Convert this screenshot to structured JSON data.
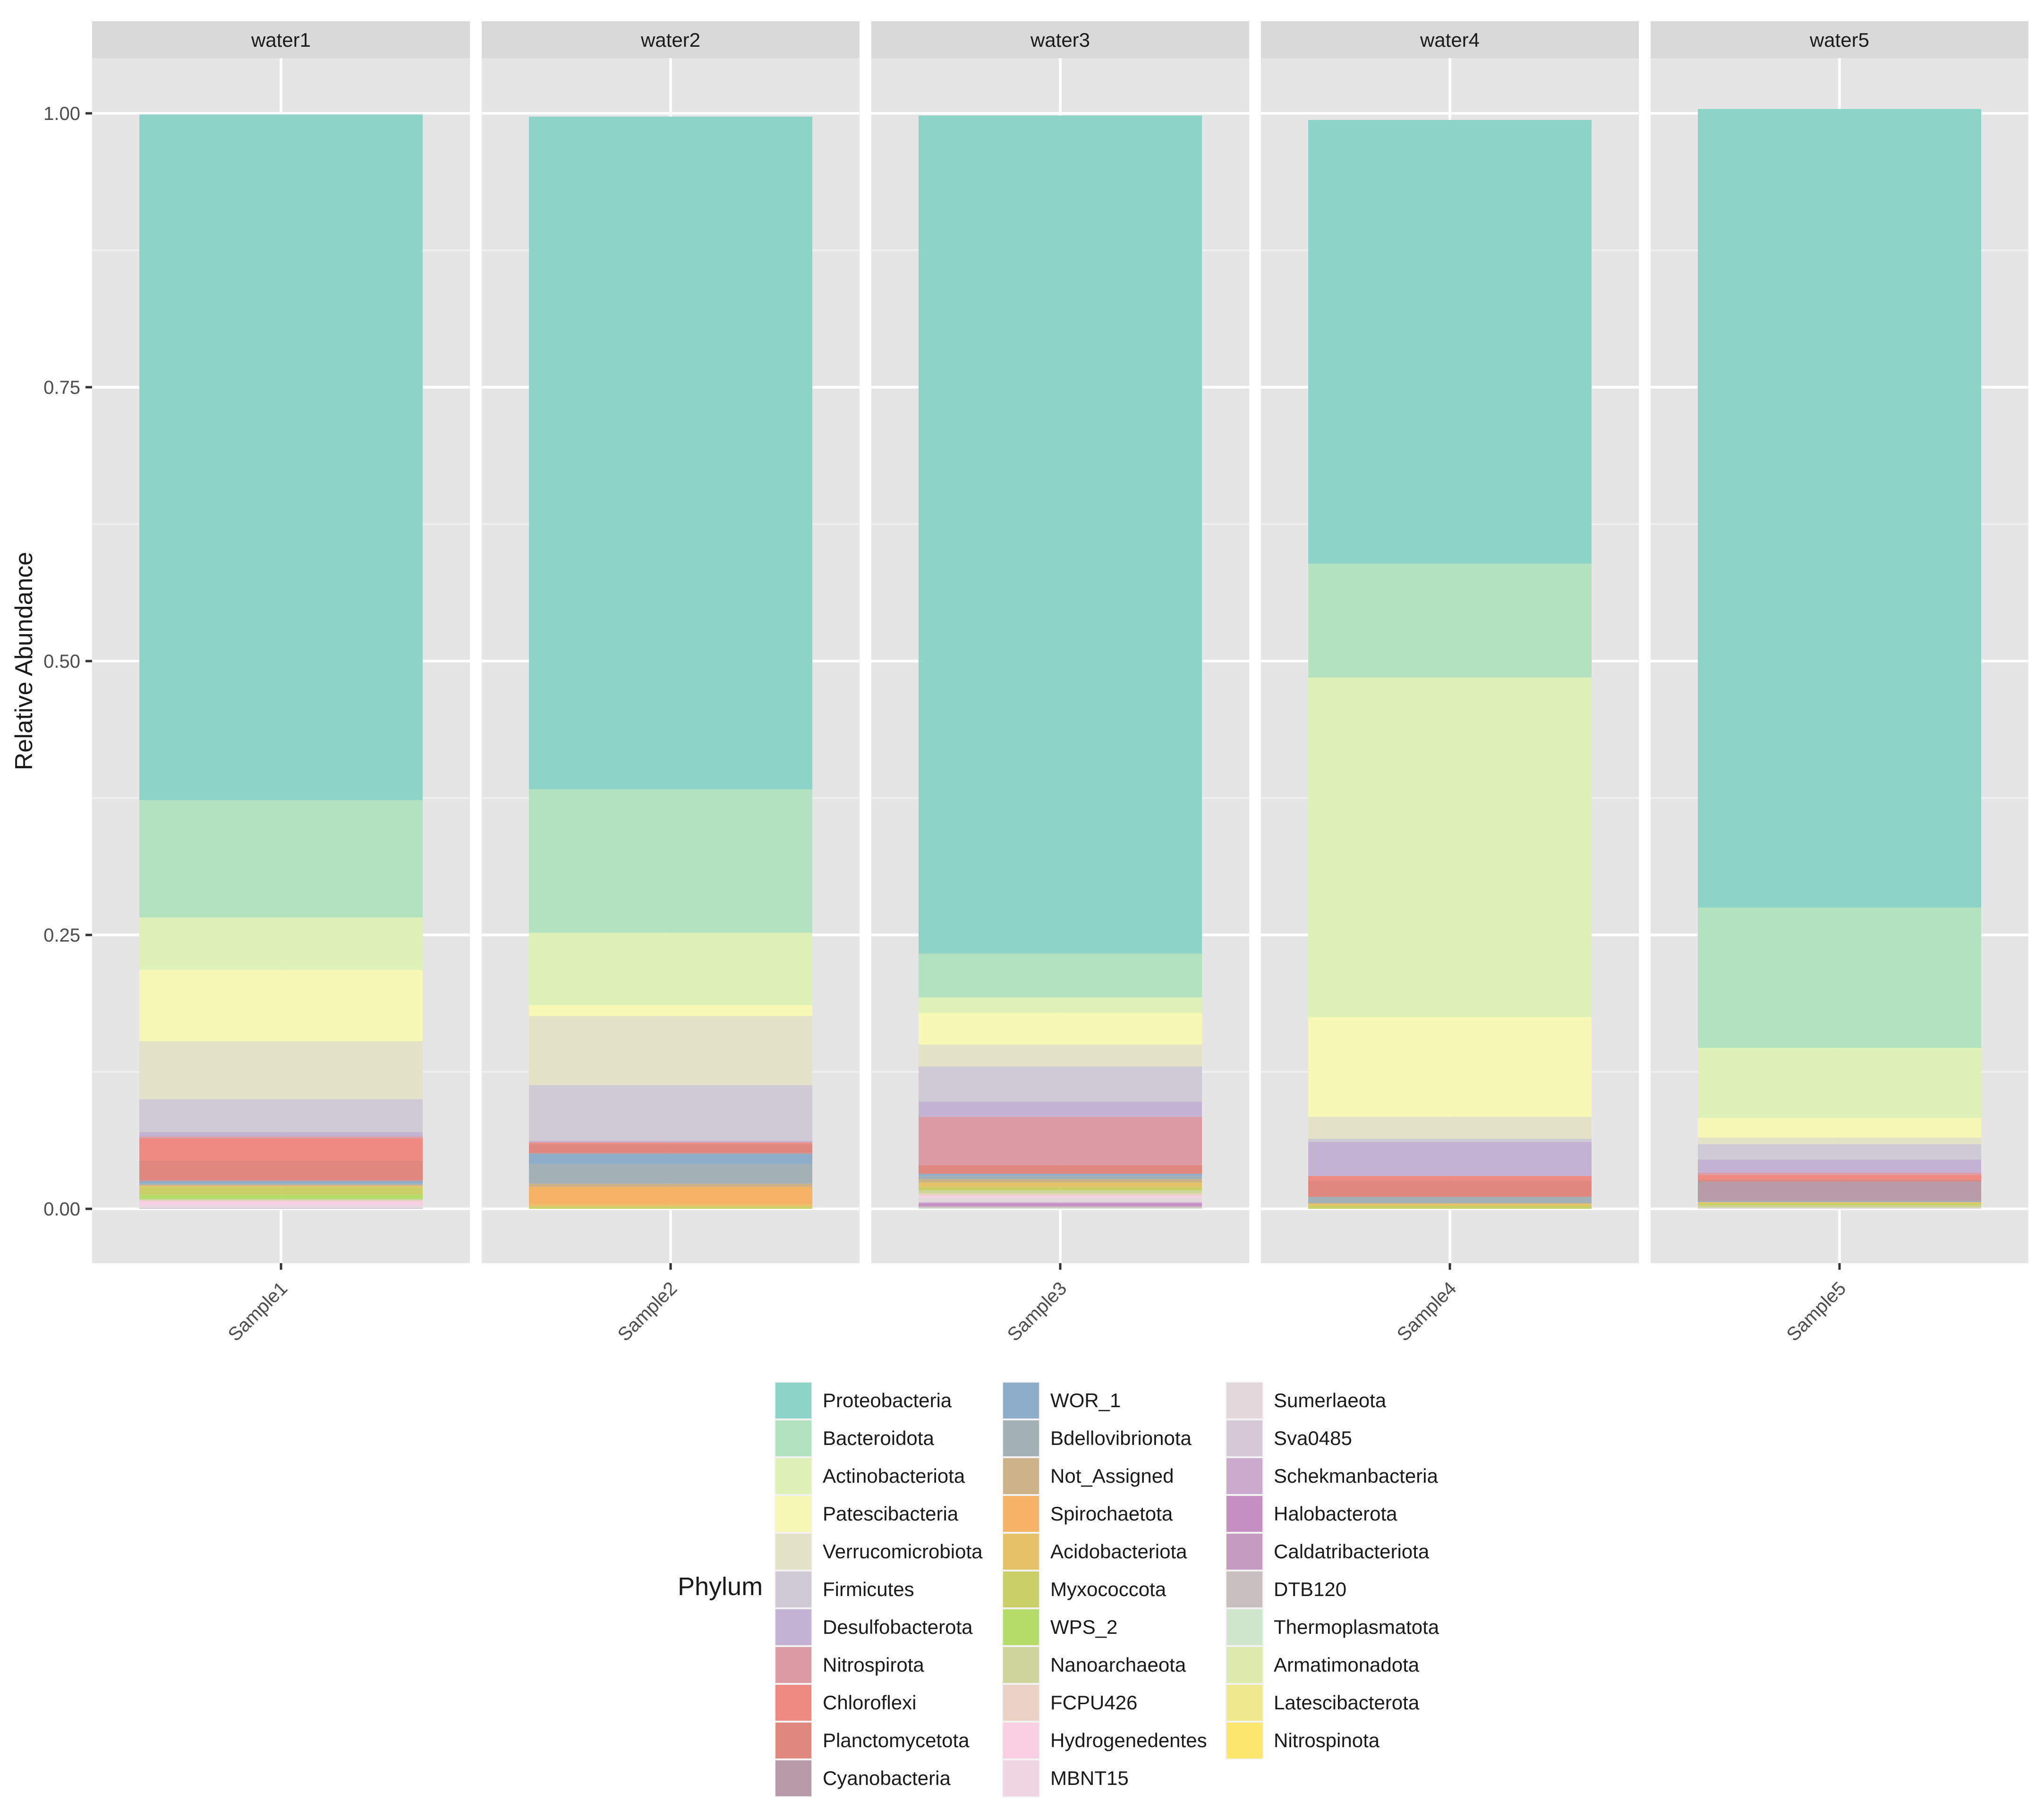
{
  "chart_data": {
    "type": "bar",
    "stacked": true,
    "facet_label": "",
    "ylabel": "Relative Abundance",
    "xlabel": "",
    "ylim": [
      0,
      1
    ],
    "yticks": [
      0,
      0.25,
      0.5,
      0.75,
      1
    ],
    "ytick_labels": [
      "0.00",
      "0.25",
      "0.50",
      "0.75",
      "1.00"
    ],
    "grid": true,
    "legend_position": "bottom",
    "legend_title": "Phylum",
    "facets": [
      "water1",
      "water2",
      "water3",
      "water4",
      "water5"
    ],
    "samples": [
      "Sample1",
      "Sample2",
      "Sample3",
      "Sample4",
      "Sample5"
    ],
    "series": [
      {
        "name": "Proteobacteria",
        "color": "#8DD3C7",
        "values": [
          0.626,
          0.614,
          0.765,
          0.405,
          0.729
        ]
      },
      {
        "name": "Bacteroidota",
        "color": "#B3E2C0",
        "values": [
          0.107,
          0.131,
          0.04,
          0.104,
          0.128
        ]
      },
      {
        "name": "Actinobacteriota",
        "color": "#DEF2B8",
        "values": [
          0.048,
          0.066,
          0.014,
          0.31,
          0.064
        ]
      },
      {
        "name": "Patescibacteria",
        "color": "#F8F8B6",
        "values": [
          0.065,
          0.01,
          0.029,
          0.091,
          0.018
        ]
      },
      {
        "name": "Verrucomicrobiota",
        "color": "#E3E2C6",
        "values": [
          0.053,
          0.063,
          0.02,
          0.02,
          0.006
        ]
      },
      {
        "name": "Firmicutes",
        "color": "#CECBD4",
        "values": [
          0.03,
          0.051,
          0.032,
          0.003,
          0.014
        ]
      },
      {
        "name": "Desulfobacterota",
        "color": "#C4B2D2",
        "values": [
          0.004,
          0.001,
          0.014,
          0.031,
          0.012
        ]
      },
      {
        "name": "Nitrospirota",
        "color": "#DA9BA5",
        "values": [
          0.002,
          0.001,
          0.044,
          0.0,
          0.002
        ]
      },
      {
        "name": "Chloroflexi",
        "color": "#EE8A82",
        "values": [
          0.02,
          0.001,
          0.0,
          0.004,
          0.004
        ]
      },
      {
        "name": "Planctomycetota",
        "color": "#E0877F",
        "values": [
          0.018,
          0.008,
          0.008,
          0.015,
          0.002
        ]
      },
      {
        "name": "Cyanobacteria",
        "color": "#B79CA8",
        "values": [
          0.001,
          0.001,
          0.0,
          0.0,
          0.018
        ]
      },
      {
        "name": "WOR_1",
        "color": "#8EADC9",
        "values": [
          0.002,
          0.009,
          0.002,
          0.0,
          0.0
        ]
      },
      {
        "name": "Bdellovibrionota",
        "color": "#A2B1B5",
        "values": [
          0.001,
          0.018,
          0.003,
          0.006,
          0.001
        ]
      },
      {
        "name": "Not_Assigned",
        "color": "#CCB286",
        "values": [
          0.001,
          0.003,
          0.003,
          0.0,
          0.0
        ]
      },
      {
        "name": "Spirochaetota",
        "color": "#F6B366",
        "values": [
          0.0,
          0.016,
          0.0,
          0.0,
          0.0
        ]
      },
      {
        "name": "Acidobacteriota",
        "color": "#E5C267",
        "values": [
          0.001,
          0.002,
          0.004,
          0.002,
          0.001
        ]
      },
      {
        "name": "Myxococcota",
        "color": "#CBCF68",
        "values": [
          0.007,
          0.002,
          0.003,
          0.003,
          0.002
        ]
      },
      {
        "name": "WPS_2",
        "color": "#B5DD6A",
        "values": [
          0.004,
          0.0,
          0.0,
          0.0,
          0.0
        ]
      },
      {
        "name": "Nanoarchaeota",
        "color": "#CDD59C",
        "values": [
          0.001,
          0.0,
          0.003,
          0.0,
          0.002
        ]
      },
      {
        "name": "FCPU426",
        "color": "#EAD2C6",
        "values": [
          0.001,
          0.0,
          0.002,
          0.0,
          0.0
        ]
      },
      {
        "name": "Hydrogenedentes",
        "color": "#F7CEE2",
        "values": [
          0.003,
          0.0,
          0.001,
          0.0,
          0.0
        ]
      },
      {
        "name": "MBNT15",
        "color": "#EFD4E2",
        "values": [
          0.002,
          0.0,
          0.001,
          0.0,
          0.0
        ]
      },
      {
        "name": "Sumerlaeota",
        "color": "#E4D7DB",
        "values": [
          0.001,
          0.0,
          0.004,
          0.0,
          0.001
        ]
      },
      {
        "name": "Sva0485",
        "color": "#D7C8D6",
        "values": [
          0.001,
          0.0,
          0.0,
          0.0,
          0.0
        ]
      },
      {
        "name": "Schekmanbacteria",
        "color": "#CBACCF",
        "values": [
          0.0,
          0.0,
          0.001,
          0.0,
          0.0
        ]
      },
      {
        "name": "Halobacterota",
        "color": "#C58FC4",
        "values": [
          0.0,
          0.0,
          0.002,
          0.0,
          0.0
        ]
      },
      {
        "name": "Caldatribacteriota",
        "color": "#C59BC1",
        "values": [
          0.0,
          0.0,
          0.001,
          0.0,
          0.0
        ]
      },
      {
        "name": "DTB120",
        "color": "#CABFC0",
        "values": [
          0.0,
          0.0,
          0.001,
          0.0,
          0.0
        ]
      },
      {
        "name": "Thermoplasmatota",
        "color": "#CFE5CC",
        "values": [
          0.0,
          0.0,
          0.001,
          0.0,
          0.0
        ]
      },
      {
        "name": "Armatimonadota",
        "color": "#DCEBAD",
        "values": [
          0.0,
          0.0,
          0.0,
          0.0,
          0.0
        ]
      },
      {
        "name": "Latescibacterota",
        "color": "#EEE88E",
        "values": [
          0.0,
          0.0,
          0.0,
          0.0,
          0.0
        ]
      },
      {
        "name": "Nitrospinota",
        "color": "#FDE66E",
        "values": [
          0.0,
          0.0,
          0.0,
          0.0,
          0.0
        ]
      }
    ]
  }
}
